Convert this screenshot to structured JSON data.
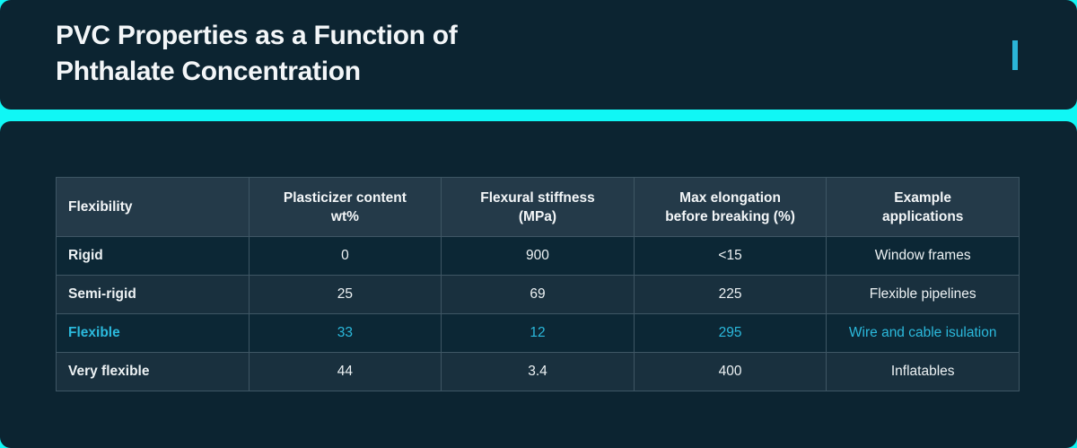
{
  "header": {
    "title": "PVC Properties as a Function of Phthalate Concentration"
  },
  "chart_data": {
    "type": "table",
    "title": "PVC Properties as a Function of Phthalate Concentration",
    "columns": [
      "Flexibility",
      "Plasticizer content\nwt%",
      "Flexural stiffness\n(MPa)",
      "Max elongation\nbefore breaking (%)",
      "Example\napplications"
    ],
    "rows": [
      [
        "Rigid",
        "0",
        "900",
        "<15",
        "Window frames"
      ],
      [
        "Semi-rigid",
        "25",
        "69",
        "225",
        "Flexible pipelines"
      ],
      [
        "Flexible",
        "33",
        "12",
        "295",
        "Wire and cable isulation"
      ],
      [
        "Very flexible",
        "44",
        "3.4",
        "400",
        "Inflatables"
      ]
    ],
    "highlighted_row_index": 2,
    "layout": {
      "grid": "on",
      "header_position": "top"
    }
  },
  "colors": {
    "page_background_cyan": "#10F7F5",
    "card_navy": "#0C2431",
    "table_header_bg": "#243A49",
    "row_dark_bg": "#0C2735",
    "row_light_bg": "#19303E",
    "grid_line": "#3E5664",
    "text_white": "#F3F6F8",
    "highlight_cyan": "#2BB9DC",
    "accent_bar_cyan": "#2BB5D8"
  }
}
